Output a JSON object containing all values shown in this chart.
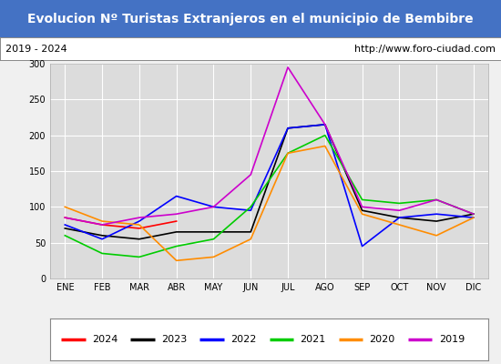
{
  "title": "Evolucion Nº Turistas Extranjeros en el municipio de Bembibre",
  "subtitle_left": "2019 - 2024",
  "subtitle_right": "http://www.foro-ciudad.com",
  "title_bg": "#4472c4",
  "title_color": "white",
  "months": [
    "ENE",
    "FEB",
    "MAR",
    "ABR",
    "MAY",
    "JUN",
    "JUL",
    "AGO",
    "SEP",
    "OCT",
    "NOV",
    "DIC"
  ],
  "ylim": [
    0,
    300
  ],
  "yticks": [
    0,
    50,
    100,
    150,
    200,
    250,
    300
  ],
  "series": {
    "2024": {
      "color": "#ff0000",
      "data": [
        85,
        75,
        70,
        80,
        null,
        null,
        null,
        null,
        null,
        null,
        null,
        null
      ]
    },
    "2023": {
      "color": "#000000",
      "data": [
        70,
        60,
        55,
        65,
        65,
        65,
        210,
        215,
        95,
        85,
        80,
        90
      ]
    },
    "2022": {
      "color": "#0000ff",
      "data": [
        75,
        55,
        80,
        115,
        100,
        95,
        210,
        215,
        45,
        85,
        90,
        85
      ]
    },
    "2021": {
      "color": "#00cc00",
      "data": [
        60,
        35,
        30,
        45,
        55,
        100,
        175,
        200,
        110,
        105,
        110,
        90
      ]
    },
    "2020": {
      "color": "#ff8c00",
      "data": [
        100,
        80,
        75,
        25,
        30,
        55,
        175,
        185,
        90,
        75,
        60,
        85
      ]
    },
    "2019": {
      "color": "#cc00cc",
      "data": [
        85,
        75,
        85,
        90,
        100,
        145,
        295,
        215,
        100,
        95,
        110,
        90
      ]
    }
  },
  "legend_order": [
    "2024",
    "2023",
    "2022",
    "2021",
    "2020",
    "2019"
  ],
  "bg_color": "#f0f0f0",
  "plot_bg": "#dcdcdc",
  "grid_color": "white",
  "title_fontsize": 10,
  "subtitle_fontsize": 8,
  "tick_fontsize": 7,
  "legend_fontsize": 8
}
